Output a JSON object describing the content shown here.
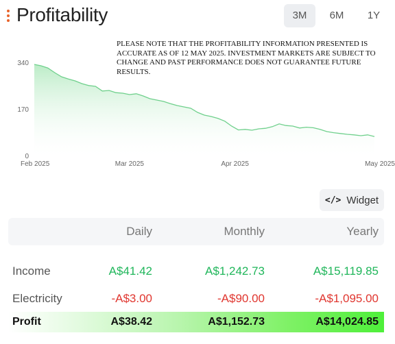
{
  "header": {
    "title": "Profitability",
    "tabs": [
      {
        "label": "3M",
        "active": true
      },
      {
        "label": "6M",
        "active": false
      },
      {
        "label": "1Y",
        "active": false
      }
    ]
  },
  "disclaimer": "PLEASE NOTE THAT THE PROFITABILITY INFORMATION PRESENTED IS ACCURATE AS OF 12 MAY 2025. INVESTMENT MARKETS ARE SUBJECT TO CHANGE AND PAST PERFORMANCE DOES NOT GUARANTEE FUTURE RESULTS.",
  "chart_data": {
    "type": "area",
    "x": [
      "2025-02-01",
      "2025-02-03",
      "2025-02-05",
      "2025-02-07",
      "2025-02-09",
      "2025-02-11",
      "2025-02-13",
      "2025-02-15",
      "2025-02-17",
      "2025-02-19",
      "2025-02-21",
      "2025-02-23",
      "2025-02-25",
      "2025-02-27",
      "2025-03-01",
      "2025-03-03",
      "2025-03-05",
      "2025-03-07",
      "2025-03-09",
      "2025-03-11",
      "2025-03-13",
      "2025-03-15",
      "2025-03-17",
      "2025-03-19",
      "2025-03-21",
      "2025-03-23",
      "2025-03-25",
      "2025-03-27",
      "2025-03-29",
      "2025-03-31",
      "2025-04-02",
      "2025-04-04",
      "2025-04-06",
      "2025-04-08",
      "2025-04-10",
      "2025-04-12",
      "2025-04-14",
      "2025-04-16",
      "2025-04-18",
      "2025-04-20",
      "2025-04-22",
      "2025-04-24",
      "2025-04-26",
      "2025-04-28",
      "2025-04-30",
      "2025-05-02",
      "2025-05-04",
      "2025-05-06",
      "2025-05-08",
      "2025-05-10",
      "2025-05-12"
    ],
    "values": [
      335,
      330,
      322,
      305,
      290,
      282,
      275,
      265,
      258,
      255,
      238,
      240,
      232,
      230,
      225,
      228,
      220,
      210,
      205,
      200,
      192,
      185,
      180,
      175,
      160,
      150,
      145,
      138,
      128,
      110,
      96,
      98,
      95,
      100,
      102,
      108,
      118,
      112,
      110,
      103,
      106,
      104,
      98,
      90,
      86,
      83,
      80,
      78,
      75,
      78,
      72
    ],
    "yticks": [
      0,
      170,
      340
    ],
    "ylim": [
      0,
      340
    ],
    "xticks": [
      {
        "date": "2025-02-01",
        "label": "Feb 2025"
      },
      {
        "date": "2025-03-01",
        "label": "Mar 2025"
      },
      {
        "date": "2025-04-01",
        "label": "Apr 2025"
      },
      {
        "date": "2025-05-01",
        "label": "May 2025"
      }
    ],
    "line_color": "#6fd08c",
    "fill_color": "#c9f0d2"
  },
  "widget_button": {
    "label": "Widget",
    "icon": "code-icon"
  },
  "table": {
    "headers": [
      "Daily",
      "Monthly",
      "Yearly"
    ],
    "rows": [
      {
        "label": "Income",
        "values": [
          "A$41.42",
          "A$1,242.73",
          "A$15,119.85"
        ],
        "tone": "pos"
      },
      {
        "label": "Electricity",
        "values": [
          "-A$3.00",
          "-A$90.00",
          "-A$1,095.00"
        ],
        "tone": "neg"
      }
    ],
    "profit": {
      "label": "Profit",
      "values": [
        "A$38.42",
        "A$1,152.73",
        "A$14,024.85"
      ]
    }
  },
  "colors": {
    "accent": "#e8642c",
    "positive": "#1fb65a",
    "negative": "#e0362f"
  }
}
